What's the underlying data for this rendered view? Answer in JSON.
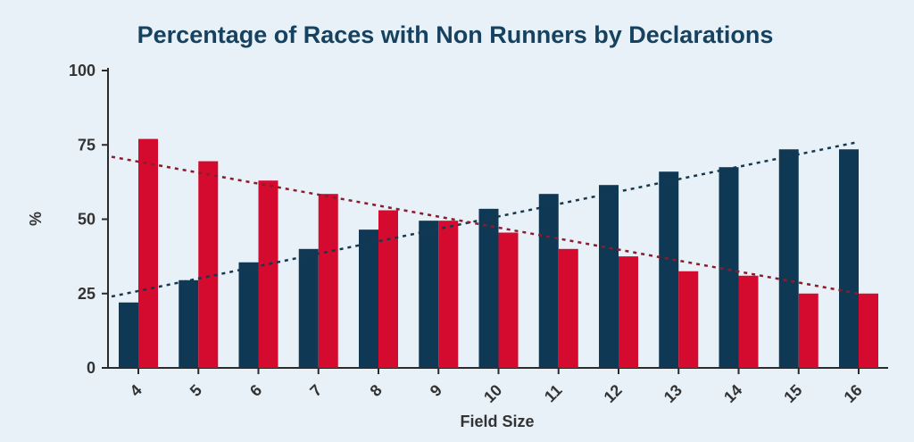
{
  "chart_data": {
    "type": "bar",
    "title": "Percentage of Races with Non Runners by Declarations",
    "xlabel": "Field Size",
    "ylabel": "%",
    "categories": [
      "4",
      "5",
      "6",
      "7",
      "8",
      "9",
      "10",
      "11",
      "12",
      "13",
      "14",
      "15",
      "16"
    ],
    "series": [
      {
        "values": [
          22,
          29.5,
          35.5,
          40,
          46.5,
          49.5,
          53.5,
          58.5,
          61.5,
          66,
          67.5,
          73.5,
          73.5
        ]
      },
      {
        "values": [
          77,
          69.5,
          63,
          58.5,
          53,
          49.5,
          45.5,
          40,
          37.5,
          32.5,
          31,
          25,
          25
        ]
      }
    ],
    "trendlines": [
      {
        "style": "dotted",
        "from": [
          4,
          24
        ],
        "to": [
          16,
          76
        ]
      },
      {
        "style": "dotted",
        "from": [
          4,
          71
        ],
        "to": [
          16,
          25
        ]
      }
    ],
    "yticks": [
      0,
      25,
      50,
      75,
      100
    ],
    "ylim": [
      0,
      100
    ],
    "grid": false,
    "legend": "none",
    "colors": {
      "series1": "#0f3854",
      "series2": "#d50a2f",
      "trend1": "#17384f",
      "trend2": "#8b1c2c",
      "title": "#16415f"
    }
  }
}
